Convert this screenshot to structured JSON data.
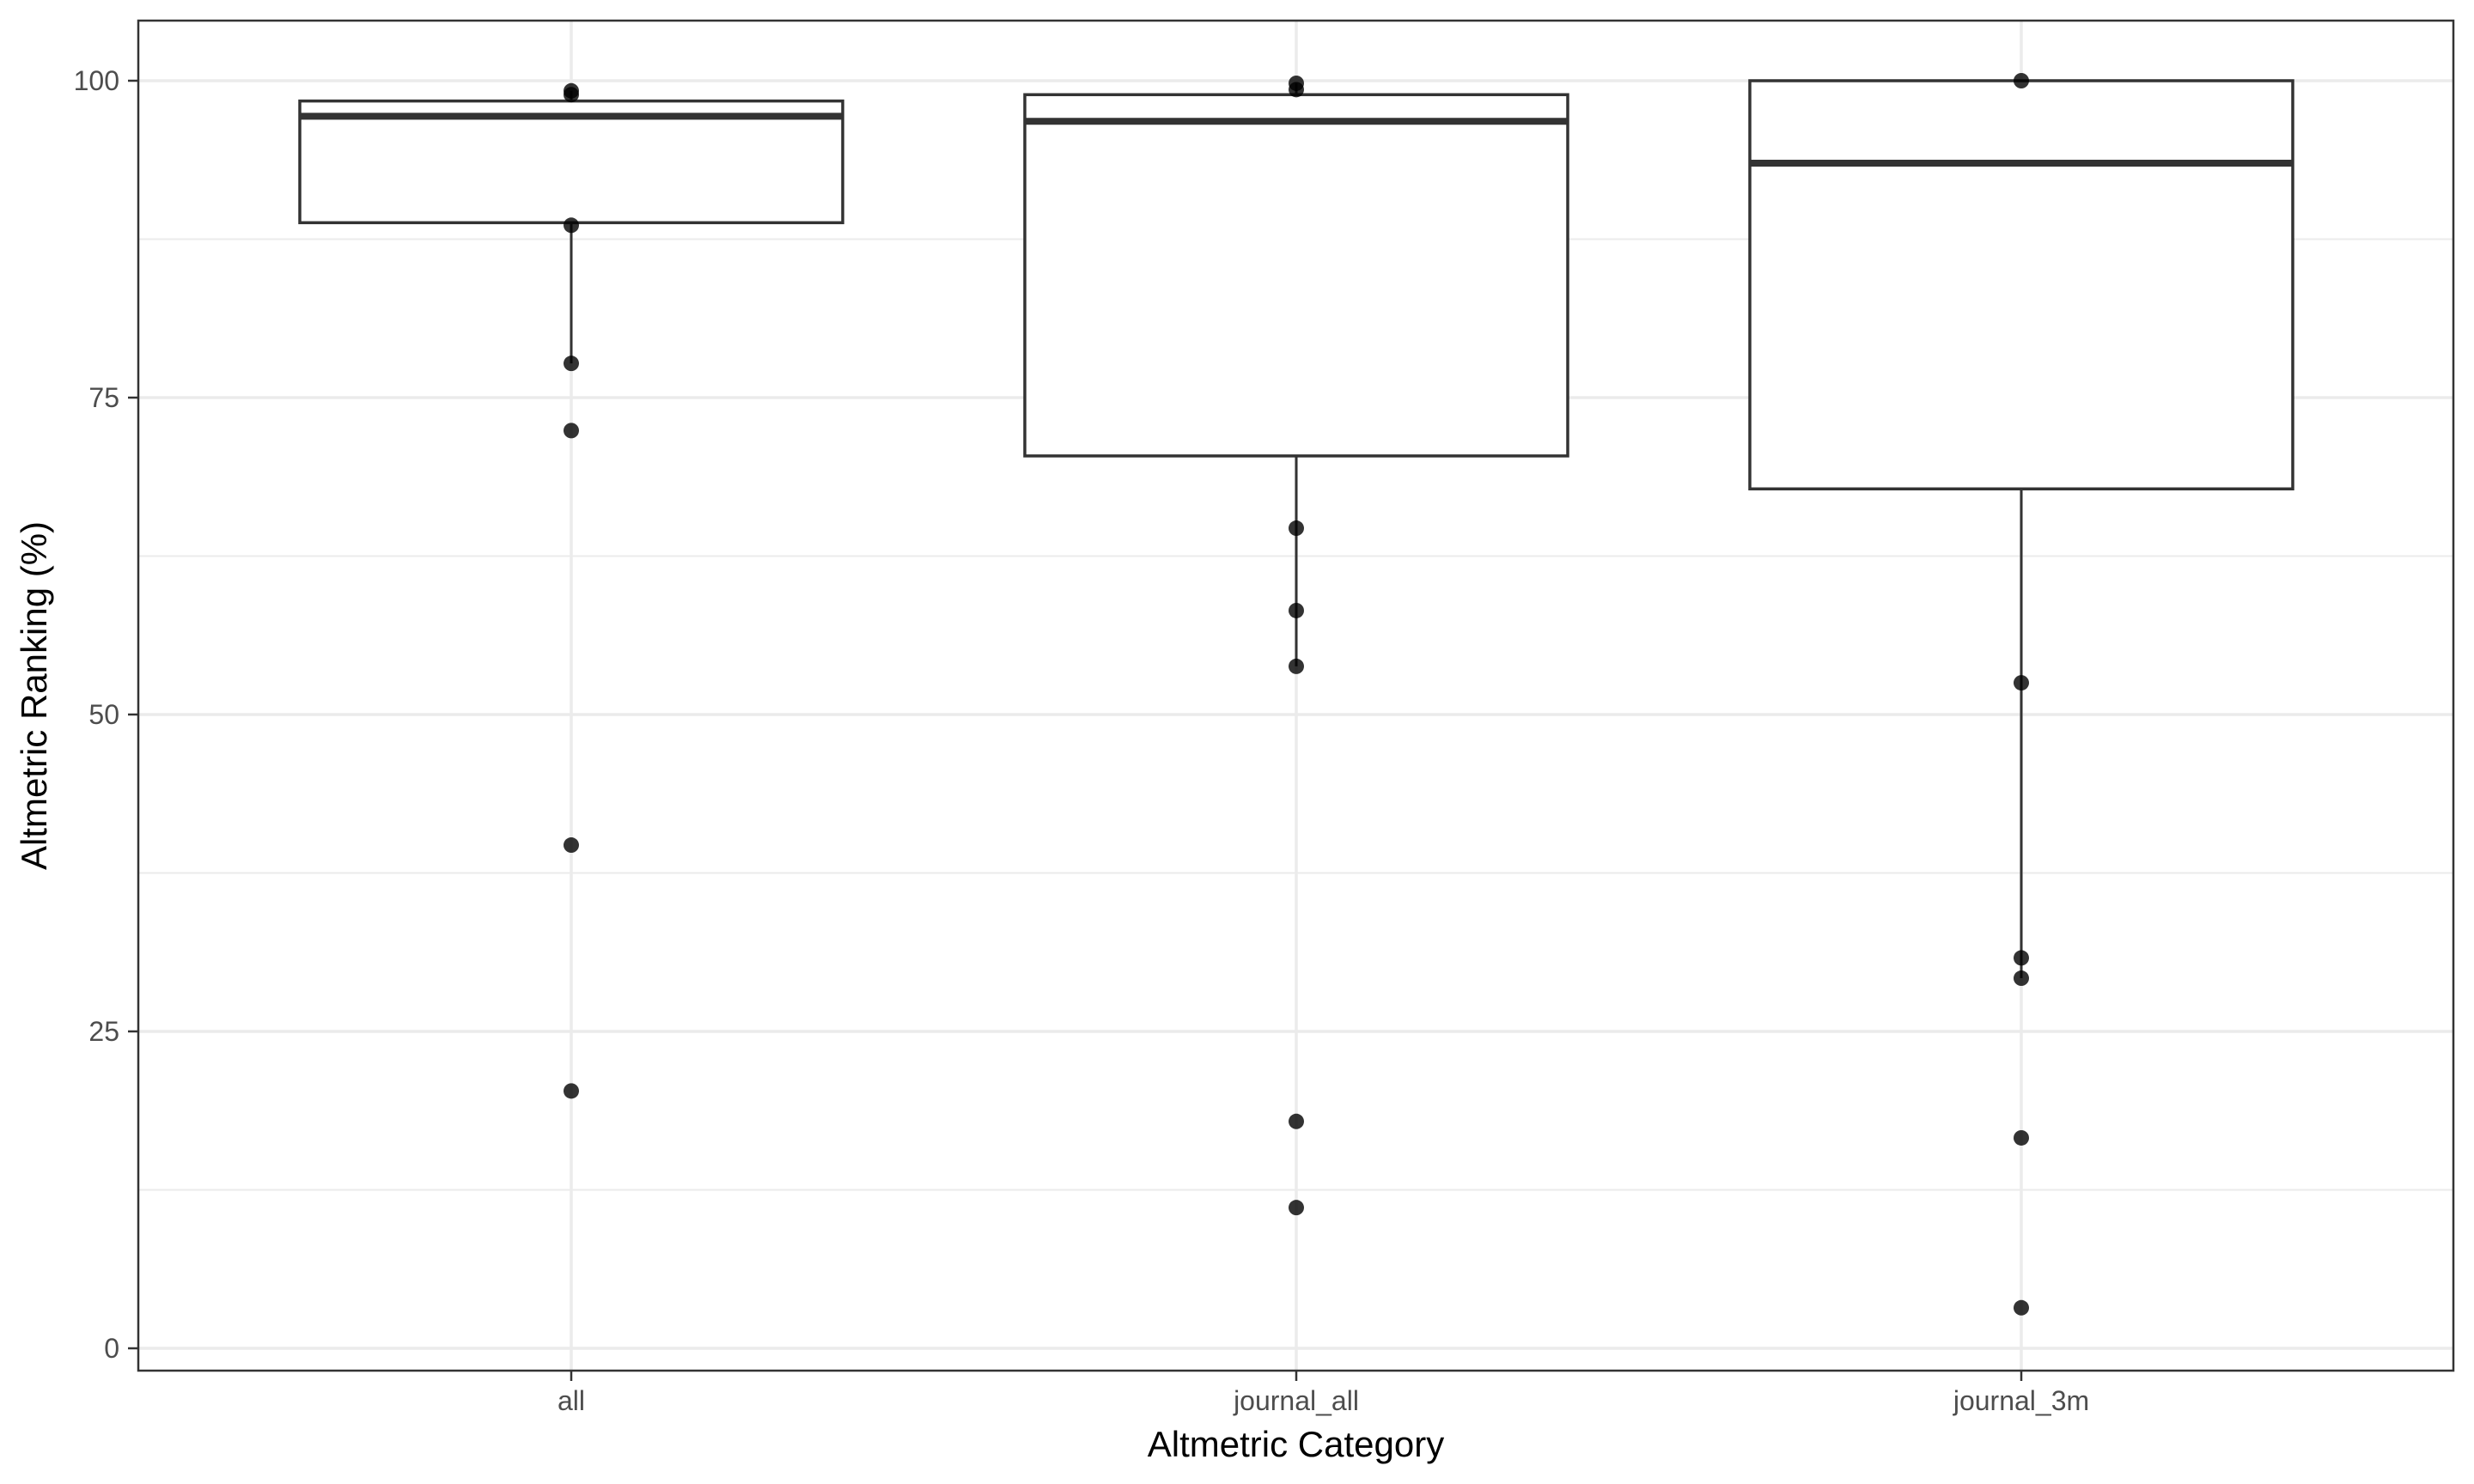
{
  "chart_data": {
    "type": "box",
    "title": "",
    "xlabel": "Altmetric Category",
    "ylabel": "Altmetric Ranking (%)",
    "ylim": [
      -1.5,
      104.7
    ],
    "yticks": [
      0,
      25,
      50,
      75,
      100
    ],
    "y_minor_gridlines": [
      12.5,
      37.5,
      62.5,
      87.5
    ],
    "grid": true,
    "categories": [
      "all",
      "journal_all",
      "journal_3m"
    ],
    "boxes": [
      {
        "category": "all",
        "q1": 88.8,
        "median": 97.2,
        "q3": 98.4,
        "whisker_low": 77.7,
        "whisker_high": 99.2
      },
      {
        "category": "journal_all",
        "q1": 70.4,
        "median": 96.8,
        "q3": 98.9,
        "whisker_low": 53.8,
        "whisker_high": 99.8
      },
      {
        "category": "journal_3m",
        "q1": 67.8,
        "median": 93.5,
        "q3": 100.0,
        "whisker_low": 29.2,
        "whisker_high": 100.0
      }
    ],
    "points": [
      {
        "category": "all",
        "values": [
          99.2,
          98.9,
          88.6,
          77.7,
          72.4,
          39.7,
          20.3
        ]
      },
      {
        "category": "journal_all",
        "values": [
          99.8,
          99.3,
          64.7,
          58.2,
          53.8,
          17.9,
          11.1
        ]
      },
      {
        "category": "journal_3m",
        "values": [
          100.0,
          52.5,
          30.8,
          29.2,
          16.6,
          3.2
        ]
      }
    ],
    "colors": {
      "box_outline": "#333333",
      "points": "#000000",
      "grid": "#ebebeb",
      "panel_border": "#333333",
      "background": "#ffffff"
    }
  }
}
